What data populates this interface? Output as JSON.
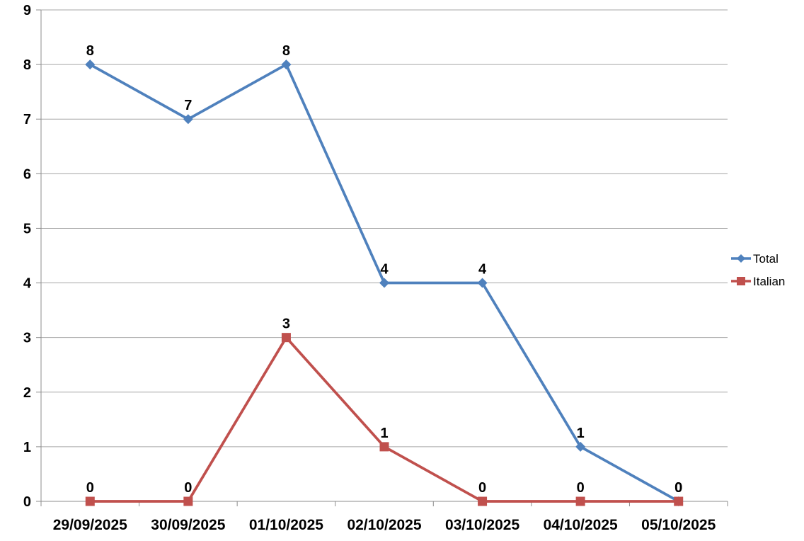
{
  "chart_data": {
    "type": "line",
    "categories": [
      "29/09/2025",
      "30/09/2025",
      "01/10/2025",
      "02/10/2025",
      "03/10/2025",
      "04/10/2025",
      "05/10/2025"
    ],
    "series": [
      {
        "name": "Total",
        "color": "#4F81BD",
        "marker": "diamond",
        "values": [
          8,
          7,
          8,
          4,
          4,
          1,
          0
        ]
      },
      {
        "name": "Italian",
        "color": "#C0504D",
        "marker": "square",
        "values": [
          0,
          0,
          3,
          1,
          0,
          0,
          0
        ]
      }
    ],
    "title": "",
    "xlabel": "",
    "ylabel": "",
    "y_axis": {
      "min": 0,
      "max": 9,
      "step": 1,
      "tick_labels": [
        "0",
        "1",
        "2",
        "3",
        "4",
        "5",
        "6",
        "7",
        "8",
        "9"
      ]
    },
    "ylim": [
      0,
      9
    ],
    "grid": true,
    "data_labels": true,
    "legend_position": "right",
    "colors": {
      "gridline": "#A6A6A6",
      "axis": "#8C8C8C",
      "label": "#000000",
      "background": "#FFFFFF"
    }
  }
}
